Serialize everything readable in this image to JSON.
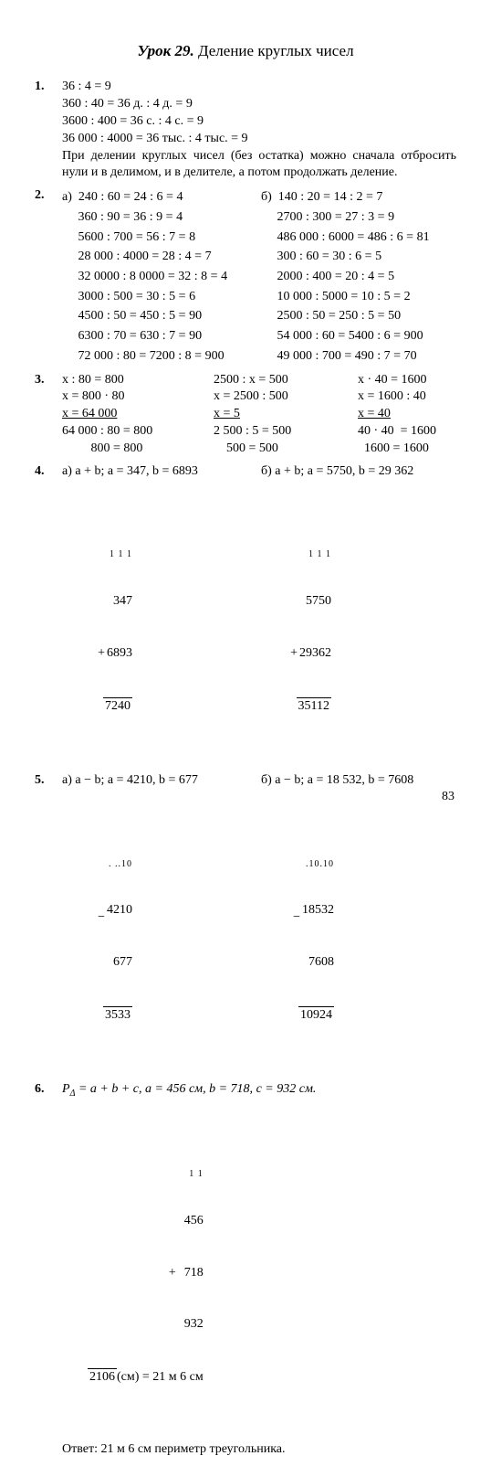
{
  "title": {
    "lesson": "Урок 29.",
    "topic": "Деление круглых чисел"
  },
  "p1": {
    "num": "1.",
    "l1": "36 : 4 = 9",
    "l2": "360 : 40 = 36 д. : 4 д. = 9",
    "l3": "3600 : 400 = 36 с. : 4 с. = 9",
    "l4": "36 000 : 4000 = 36 тыс. : 4 тыс. = 9",
    "para": "При делении круглых чисел (без остатка) можно сначала отбросить нули и в делимом, и в делителе, а потом продолжать деление."
  },
  "p2": {
    "num": "2.",
    "rows": [
      [
        "а)  240 : 60 = 24 : 6 = 4",
        "б)  140 : 20 = 14 : 2 = 7"
      ],
      [
        "     360 : 90 = 36 : 9 = 4",
        "     2700 : 300 = 27 : 3 = 9"
      ],
      [
        "     5600 : 700 = 56 : 7 = 8",
        "     486 000 : 6000 = 486 : 6 = 81"
      ],
      [
        "     28 000 : 4000 = 28 : 4 = 7",
        "     300 : 60 = 30 : 6 = 5"
      ],
      [
        "     32 0000 : 8 0000 = 32 : 8 = 4",
        "     2000 : 400 = 20 : 4 = 5"
      ],
      [
        "     3000 : 500 = 30 : 5 = 6",
        "     10 000 : 5000 = 10 : 5 = 2"
      ],
      [
        "     4500 : 50 = 450 : 5 = 90",
        "     2500 : 50 = 250 : 5 = 50"
      ],
      [
        "     6300 : 70 = 630 : 7 = 90",
        "     54 000 : 60 = 5400 : 6 = 900"
      ],
      [
        "     72 000 : 80 = 7200 : 8 = 900",
        "     49 000 : 700 = 490 : 7 = 70"
      ]
    ]
  },
  "p3": {
    "num": "3.",
    "c1": [
      "x : 80 = 800",
      "x = 800 · 80",
      "x = 64 000",
      "64 000 : 80 = 800",
      "         800 = 800"
    ],
    "c2": [
      "2500 : x = 500",
      "x = 2500 : 500",
      "x = 5",
      "2 500 : 5 = 500",
      "    500 = 500"
    ],
    "c3": [
      "x · 40 = 1600",
      "x = 1600 : 40",
      "x = 40",
      "40 · 40  = 1600",
      "  1600 = 1600"
    ]
  },
  "p4": {
    "num": "4.",
    "aLabel": "а) a + b; a = 347, b = 6893",
    "bLabel": "б) a + b; a = 5750, b = 29 362",
    "aCalc": {
      "dots": " 1 1 1",
      "n1": "  347",
      "n2": "6893",
      "sum": "7240"
    },
    "bCalc": {
      "dots": "  1 1 1",
      "n1": "  5750",
      "n2": "29362",
      "sum": "35112"
    }
  },
  "p5": {
    "num": "5.",
    "aLabel": "а) a − b; a = 4210, b = 677",
    "bLabel": "б) a − b; a = 18 532, b = 7608",
    "aCalc": {
      "dots": ". ..10",
      "n1": "4210",
      "n2": "  677",
      "diff": "3533"
    },
    "bCalc": {
      "dots": "    .10.10",
      "n1": "18532",
      "n2": "  7608",
      "diff": "10924"
    }
  },
  "p6": {
    "num": "6.",
    "label": "P∆ = a + b + c, a = 456 см, b = 718, c = 932 см.",
    "dots": "1 1",
    "n1": "  456",
    "n2": "  718",
    "n3": "  932",
    "sum": "2106",
    "unit": "(см) = 21 м 6 см",
    "answer": "Ответ: 21 м 6 см периметр треугольника."
  },
  "pagenum": "83"
}
